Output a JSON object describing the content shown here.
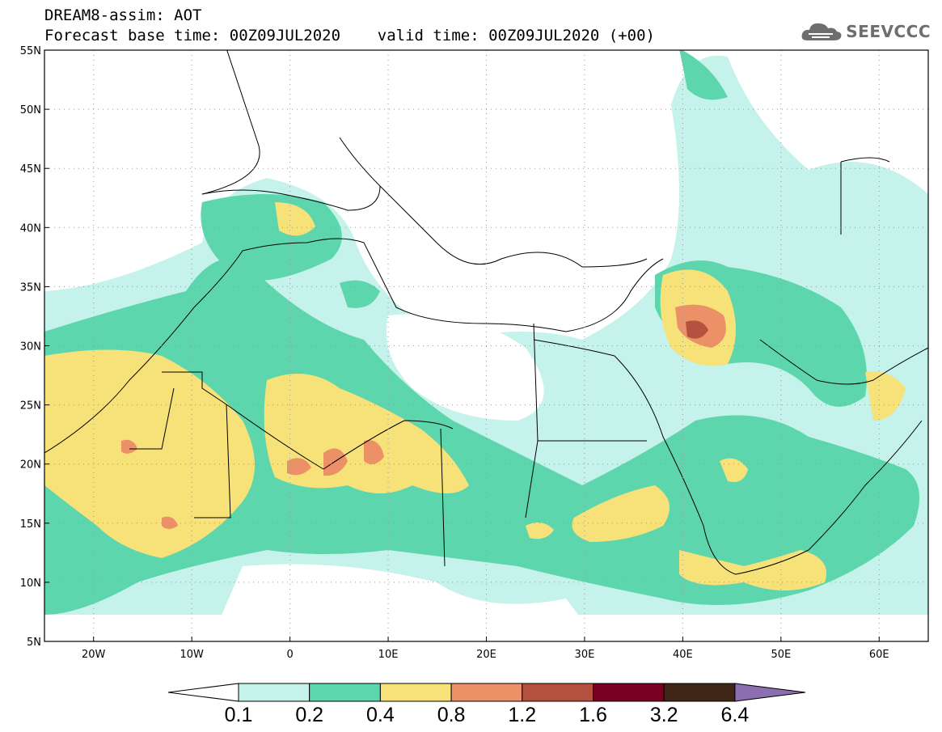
{
  "header": {
    "line1": "DREAM8-assim: AOT",
    "line2": "Forecast base time: 00Z09JUL2020    valid time: 00Z09JUL2020 (+00)",
    "logo_text": "SEEVCCC"
  },
  "map": {
    "lat_labels": [
      "55N",
      "50N",
      "45N",
      "40N",
      "35N",
      "30N",
      "25N",
      "20N",
      "15N",
      "10N",
      "5N"
    ],
    "lon_labels": [
      "20W",
      "10W",
      "0",
      "10E",
      "20E",
      "30E",
      "40E",
      "50E",
      "60E"
    ],
    "lat_range": [
      5,
      55
    ],
    "lon_range": [
      -25,
      65
    ],
    "grid": true
  },
  "colorbar": {
    "labels": [
      "0.1",
      "0.2",
      "0.4",
      "0.8",
      "1.2",
      "1.6",
      "3.2",
      "6.4"
    ],
    "colors": [
      "#ffffff",
      "#c5f2ea",
      "#5ed6ad",
      "#f7e27a",
      "#eb9067",
      "#b4513f",
      "#7a0022",
      "#3f2616",
      "#8c6fb0"
    ]
  }
}
